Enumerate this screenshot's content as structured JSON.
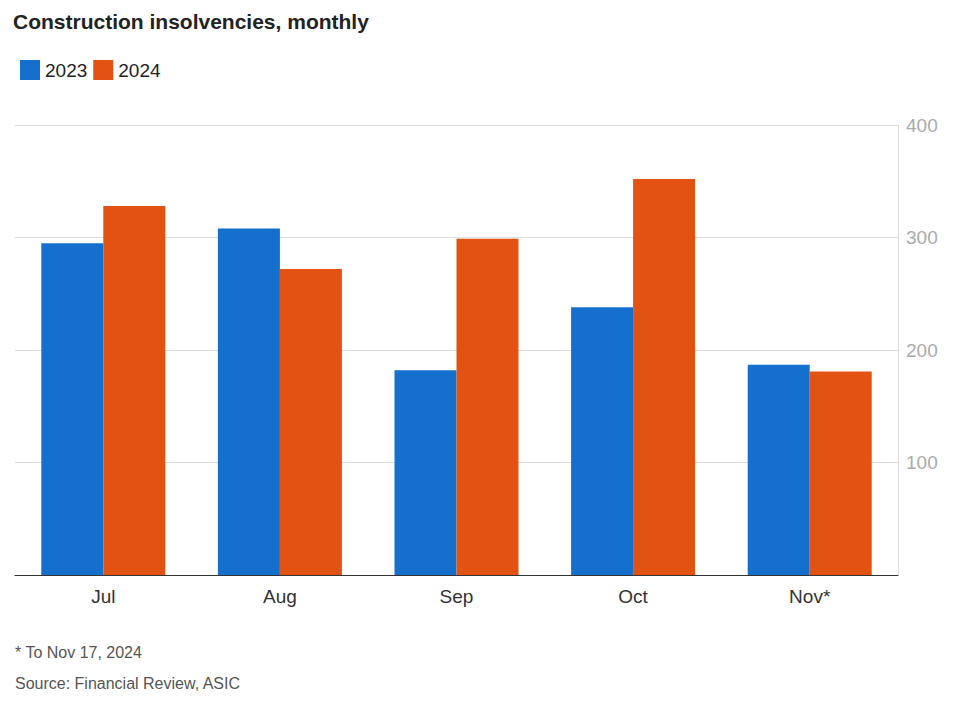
{
  "chart_data": {
    "type": "bar",
    "title": "Construction insolvencies, monthly",
    "categories": [
      "Jul",
      "Aug",
      "Sep",
      "Oct",
      "Nov*"
    ],
    "series": [
      {
        "name": "2023",
        "color": "#1470cc",
        "values": [
          295,
          308,
          182,
          238,
          187
        ]
      },
      {
        "name": "2024",
        "color": "#e25212",
        "values": [
          328,
          272,
          299,
          352,
          181
        ]
      }
    ],
    "ylim": [
      0,
      400
    ],
    "yticks": [
      100,
      200,
      300,
      400
    ],
    "grid": true,
    "legend": "top-left",
    "annotations": [
      "* To Nov 17, 2024",
      "Source: Financial Review, ASIC"
    ]
  }
}
